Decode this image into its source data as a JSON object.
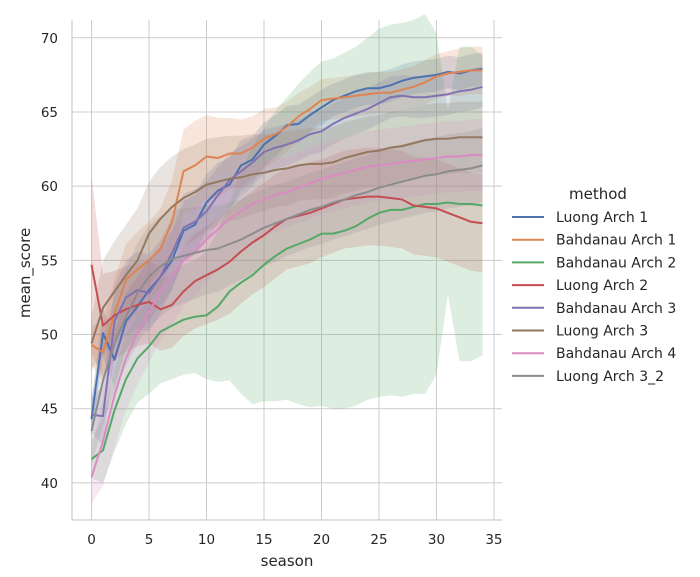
{
  "chart_data": {
    "type": "line",
    "xlabel": "season",
    "ylabel": "mean_score",
    "xlim": [
      -1.7,
      35.7
    ],
    "ylim": [
      37.5,
      71.2
    ],
    "xticks": [
      0,
      5,
      10,
      15,
      20,
      25,
      30,
      35
    ],
    "yticks": [
      40,
      45,
      50,
      55,
      60,
      65,
      70
    ],
    "grid": true,
    "legend_title": "method",
    "legend_position": "right",
    "x": [
      0,
      1,
      2,
      3,
      4,
      5,
      6,
      7,
      8,
      9,
      10,
      11,
      12,
      13,
      14,
      15,
      16,
      17,
      18,
      19,
      20,
      21,
      22,
      23,
      24,
      25,
      26,
      27,
      28,
      29,
      30,
      31,
      32,
      33,
      34
    ],
    "series": [
      {
        "name": "Luong Arch 1",
        "color": "#4c72b0",
        "values": [
          44.3,
          50.1,
          48.3,
          50.9,
          51.9,
          53.0,
          53.9,
          55.0,
          57.0,
          57.4,
          58.9,
          59.7,
          60.1,
          61.4,
          61.8,
          62.8,
          63.4,
          64.1,
          64.2,
          64.8,
          65.3,
          65.8,
          66.1,
          66.4,
          66.6,
          66.6,
          66.8,
          67.1,
          67.3,
          67.4,
          67.5,
          67.7,
          67.6,
          67.8,
          67.9
        ],
        "band_width": [
          1.2,
          1.6,
          1.8,
          1.9,
          2.0,
          2.0,
          2.0,
          2.0,
          2.0,
          2.0,
          1.9,
          1.9,
          1.8,
          1.7,
          1.6,
          1.5,
          1.4,
          1.3,
          1.3,
          1.2,
          1.2,
          1.1,
          1.1,
          1.1,
          1.1,
          1.1,
          1.1,
          1.1,
          1.1,
          1.1,
          1.1,
          1.1,
          1.1,
          1.1,
          1.1
        ]
      },
      {
        "name": "Bahdanau Arch 1",
        "color": "#dd8452",
        "values": [
          49.3,
          48.8,
          51.4,
          53.7,
          54.4,
          55.0,
          55.8,
          57.6,
          61.0,
          61.4,
          62.0,
          61.9,
          62.2,
          62.2,
          62.6,
          63.2,
          63.5,
          64.0,
          64.7,
          65.2,
          65.8,
          65.9,
          66.0,
          66.1,
          66.2,
          66.3,
          66.3,
          66.5,
          66.7,
          67.0,
          67.4,
          67.6,
          67.7,
          67.8,
          67.8
        ],
        "band_width": [
          1.3,
          2.0,
          2.3,
          2.4,
          2.5,
          2.6,
          2.7,
          2.8,
          2.8,
          3.0,
          2.8,
          2.7,
          2.4,
          2.3,
          2.1,
          2.0,
          1.8,
          1.7,
          1.6,
          1.5,
          1.4,
          1.4,
          1.4,
          1.4,
          1.4,
          1.4,
          1.4,
          1.4,
          1.4,
          1.5,
          1.5,
          1.5,
          1.6,
          1.6,
          1.6
        ]
      },
      {
        "name": "Bahdanau Arch 2",
        "color": "#55a868",
        "values": [
          41.6,
          42.2,
          44.9,
          47.0,
          48.4,
          49.2,
          50.2,
          50.6,
          51.0,
          51.2,
          51.3,
          51.9,
          52.9,
          53.5,
          54.0,
          54.7,
          55.3,
          55.8,
          56.1,
          56.4,
          56.8,
          56.8,
          57.0,
          57.3,
          57.8,
          58.2,
          58.4,
          58.4,
          58.6,
          58.8,
          58.8,
          58.9,
          58.8,
          58.8,
          58.7
        ],
        "band_width": [
          1.3,
          2.2,
          2.8,
          3.0,
          3.0,
          3.2,
          3.5,
          3.6,
          3.7,
          3.8,
          4.3,
          5.1,
          6.0,
          7.5,
          8.7,
          9.2,
          9.8,
          10.2,
          10.8,
          11.3,
          11.6,
          11.8,
          12.0,
          12.1,
          12.2,
          12.4,
          12.5,
          12.6,
          12.6,
          12.8,
          11.5,
          6.2,
          10.6,
          10.6,
          10.1
        ]
      },
      {
        "name": "Luong Arch 2",
        "color": "#c44e52",
        "values": [
          54.7,
          50.6,
          51.3,
          51.7,
          52.0,
          52.2,
          51.7,
          52.0,
          52.9,
          53.6,
          54.0,
          54.4,
          54.9,
          55.6,
          56.2,
          56.7,
          57.3,
          57.8,
          58.0,
          58.2,
          58.5,
          58.8,
          59.1,
          59.2,
          59.3,
          59.3,
          59.2,
          59.1,
          58.7,
          58.6,
          58.5,
          58.2,
          57.9,
          57.6,
          57.5
        ],
        "band_width": [
          6.0,
          3.5,
          3.0,
          2.9,
          2.8,
          2.8,
          2.8,
          2.9,
          3.0,
          3.2,
          3.3,
          3.4,
          3.5,
          3.5,
          3.5,
          3.5,
          3.5,
          3.4,
          3.4,
          3.4,
          3.3,
          3.3,
          3.3,
          3.3,
          3.3,
          3.3,
          3.3,
          3.3,
          3.3,
          3.3,
          3.3,
          3.3,
          3.3,
          3.3,
          3.3
        ]
      },
      {
        "name": "Bahdanau Arch 3",
        "color": "#8172b3",
        "values": [
          44.6,
          44.5,
          50.9,
          52.5,
          53.0,
          52.8,
          53.9,
          55.5,
          57.2,
          57.6,
          58.3,
          59.4,
          60.4,
          61.0,
          61.6,
          62.3,
          62.6,
          62.8,
          63.1,
          63.5,
          63.7,
          64.2,
          64.6,
          64.9,
          65.2,
          65.6,
          66.0,
          66.1,
          66.0,
          66.0,
          66.1,
          66.2,
          66.4,
          66.5,
          66.7
        ],
        "band_width": [
          1.2,
          2.0,
          2.4,
          2.5,
          2.6,
          2.6,
          2.5,
          2.4,
          2.3,
          2.2,
          2.0,
          1.9,
          1.8,
          1.7,
          1.6,
          1.5,
          1.4,
          1.4,
          1.4,
          1.4,
          1.4,
          1.4,
          1.4,
          1.4,
          1.4,
          1.4,
          1.4,
          1.4,
          1.4,
          1.4,
          1.4,
          1.4,
          1.4,
          1.4,
          1.4
        ]
      },
      {
        "name": "Luong Arch 3",
        "color": "#937860",
        "values": [
          49.4,
          51.8,
          52.9,
          54.0,
          55.0,
          56.8,
          57.8,
          58.6,
          59.2,
          59.6,
          60.1,
          60.3,
          60.5,
          60.6,
          60.8,
          60.9,
          61.1,
          61.2,
          61.4,
          61.5,
          61.5,
          61.6,
          61.9,
          62.1,
          62.3,
          62.4,
          62.6,
          62.7,
          62.9,
          63.1,
          63.2,
          63.2,
          63.3,
          63.3,
          63.3
        ],
        "band_width": [
          1.8,
          3.2,
          3.4,
          3.4,
          3.5,
          3.5,
          3.5,
          3.4,
          3.3,
          3.2,
          3.1,
          3.0,
          2.9,
          2.8,
          2.7,
          2.6,
          2.5,
          2.5,
          2.4,
          2.4,
          2.4,
          2.4,
          2.4,
          2.4,
          2.4,
          2.4,
          2.4,
          2.4,
          2.4,
          2.4,
          2.4,
          2.4,
          2.4,
          2.4,
          2.4
        ]
      },
      {
        "name": "Bahdanau Arch 4",
        "color": "#da8bc3",
        "values": [
          40.4,
          42.8,
          45.9,
          48.4,
          50.1,
          51.5,
          52.9,
          53.9,
          55.0,
          55.6,
          56.4,
          57.1,
          57.8,
          58.3,
          58.8,
          59.1,
          59.4,
          59.6,
          59.9,
          60.2,
          60.5,
          60.7,
          60.9,
          61.1,
          61.3,
          61.4,
          61.5,
          61.6,
          61.7,
          61.8,
          61.9,
          62.0,
          62.0,
          62.1,
          62.1
        ],
        "band_width": [
          1.8,
          3.0,
          3.5,
          3.5,
          3.5,
          3.4,
          3.3,
          3.2,
          3.1,
          3.0,
          2.9,
          2.8,
          2.7,
          2.6,
          2.6,
          2.5,
          2.5,
          2.4,
          2.4,
          2.4,
          2.4,
          2.4,
          2.4,
          2.4,
          2.4,
          2.4,
          2.4,
          2.4,
          2.4,
          2.4,
          2.4,
          2.4,
          2.4,
          2.4,
          2.4
        ]
      },
      {
        "name": "Luong Arch 3_2",
        "color": "#8c8c8c",
        "values": [
          43.5,
          46.9,
          49.4,
          51.2,
          52.8,
          53.9,
          54.6,
          55.1,
          55.3,
          55.5,
          55.7,
          55.8,
          56.1,
          56.4,
          56.8,
          57.2,
          57.5,
          57.8,
          58.1,
          58.4,
          58.6,
          58.9,
          59.1,
          59.4,
          59.6,
          59.9,
          60.1,
          60.3,
          60.5,
          60.7,
          60.8,
          61.0,
          61.1,
          61.2,
          61.4
        ],
        "band_width": [
          2.3,
          3.0,
          3.2,
          3.3,
          3.4,
          3.4,
          3.4,
          3.3,
          3.2,
          3.1,
          3.0,
          2.9,
          2.8,
          2.7,
          2.7,
          2.6,
          2.6,
          2.5,
          2.5,
          2.5,
          2.5,
          2.5,
          2.5,
          2.5,
          2.5,
          2.5,
          2.5,
          2.5,
          2.5,
          2.5,
          2.5,
          2.5,
          2.5,
          2.5,
          2.5
        ]
      }
    ]
  }
}
